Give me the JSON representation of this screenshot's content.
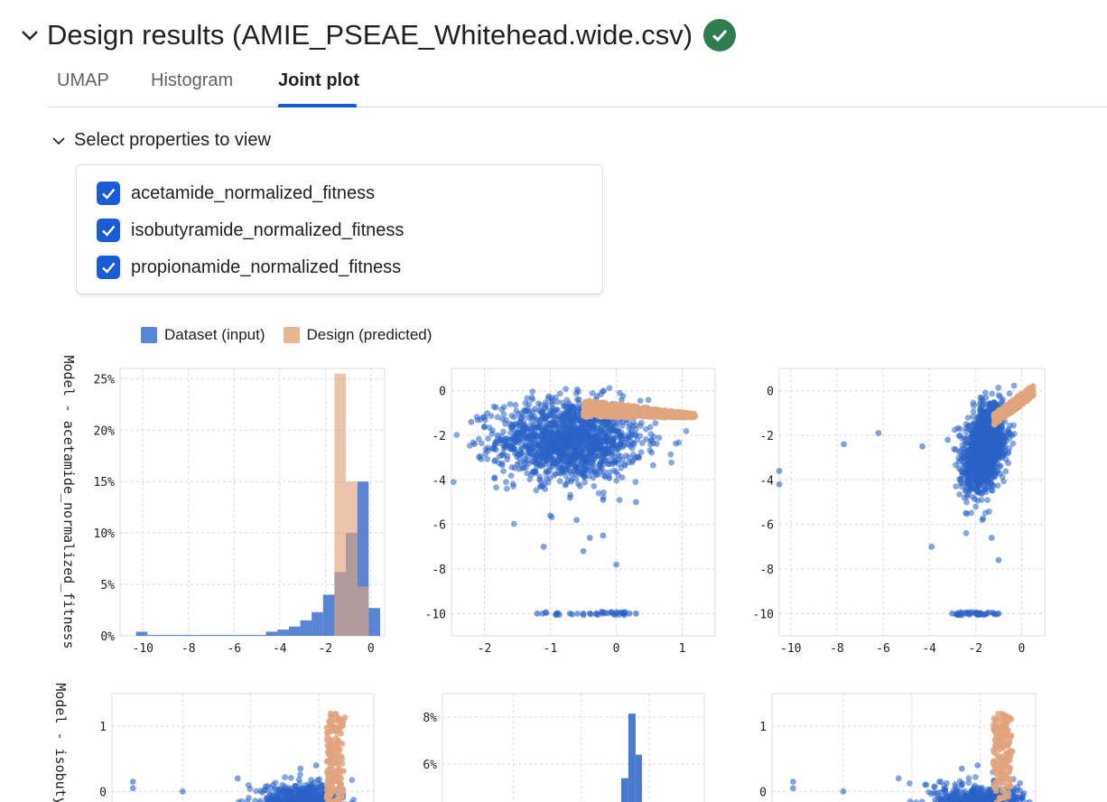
{
  "header": {
    "title": "Design results (AMIE_PSEAE_Whitehead.wide.csv)",
    "status_icon": "check-circle-icon",
    "status_color": "#2f7d4f"
  },
  "tabs": [
    {
      "label": "UMAP",
      "active": false
    },
    {
      "label": "Histogram",
      "active": false
    },
    {
      "label": "Joint plot",
      "active": true
    }
  ],
  "properties": {
    "toggle_label": "Select properties to view",
    "items": [
      {
        "label": "acetamide_normalized_fitness",
        "checked": true
      },
      {
        "label": "isobutyramide_normalized_fitness",
        "checked": true
      },
      {
        "label": "propionamide_normalized_fitness",
        "checked": true
      }
    ]
  },
  "legend": [
    {
      "label": "Dataset (input)",
      "color": "#5b86d6"
    },
    {
      "label": "Design (predicted)",
      "color": "#e8b591"
    }
  ],
  "colors": {
    "accent": "#1a5cd6",
    "dataset": "#2a63c6",
    "design": "#e0a47e"
  },
  "chart_data": [
    {
      "type": "bar",
      "subtype": "histogram",
      "ylabel": "Model - acetamide_normalized_fitness",
      "xticks": [
        "-10",
        "-8",
        "-6",
        "-4",
        "-2",
        "0"
      ],
      "yticks": [
        "0%",
        "5%",
        "10%",
        "15%",
        "20%",
        "25%"
      ],
      "xlim": [
        -11,
        0.6
      ],
      "ylim": [
        0,
        26
      ],
      "series": [
        {
          "name": "Dataset (input)",
          "bins": [
            [
              -10.3,
              -9.8,
              0.4
            ],
            [
              -9.8,
              -4.6,
              0.08
            ],
            [
              -4.6,
              -4.1,
              0.4
            ],
            [
              -4.1,
              -3.6,
              0.6
            ],
            [
              -3.6,
              -3.1,
              0.9
            ],
            [
              -3.1,
              -2.6,
              1.5
            ],
            [
              -2.6,
              -2.1,
              2.3
            ],
            [
              -2.1,
              -1.6,
              4.0
            ],
            [
              -1.6,
              -1.1,
              6.2
            ],
            [
              -1.1,
              -0.6,
              10.0
            ],
            [
              -0.6,
              -0.1,
              15.0
            ],
            [
              -0.1,
              0.4,
              2.7
            ]
          ]
        },
        {
          "name": "Design (predicted)",
          "bins": [
            [
              -1.6,
              -1.1,
              25.5
            ],
            [
              -1.1,
              -0.6,
              15.0
            ],
            [
              -0.6,
              -0.1,
              4.8
            ]
          ]
        }
      ]
    },
    {
      "type": "scatter",
      "xticks": [
        "-2",
        "-1",
        "0",
        "1"
      ],
      "yticks": [
        "0",
        "-2",
        "-4",
        "-6",
        "-8",
        "-10"
      ],
      "xlim": [
        -2.5,
        1.5
      ],
      "ylim": [
        -11,
        1
      ],
      "dataset_cloud": {
        "center": [
          -0.7,
          -2.2
        ],
        "spread": [
          0.55,
          0.9
        ]
      },
      "dataset_outliers": [
        [
          -2.2,
          -1.4
        ],
        [
          -2.0,
          -1.6
        ],
        [
          -1.8,
          -2.0
        ],
        [
          -1.6,
          -2.6
        ],
        [
          -1.5,
          -3.3
        ],
        [
          -0.7,
          -4.8
        ],
        [
          -0.2,
          -4.9
        ],
        [
          0.3,
          -5.0
        ],
        [
          -1.0,
          -5.6
        ],
        [
          -0.6,
          -5.8
        ],
        [
          -1.1,
          -7.0
        ],
        [
          -0.4,
          -6.6
        ],
        [
          -0.5,
          -7.2
        ],
        [
          0.0,
          -7.8
        ],
        [
          -0.2,
          -6.5
        ]
      ],
      "dataset_band_y": -10,
      "dataset_band_x": [
        -1.2,
        -0.9,
        -0.7,
        -0.5,
        -0.2,
        0.1,
        0.3,
        -0.4,
        -0.3,
        0.2
      ],
      "design_band": {
        "x": [
          -0.5,
          1.2
        ],
        "y": [
          -1.2,
          -0.4
        ]
      }
    },
    {
      "type": "scatter",
      "xticks": [
        "-10",
        "-8",
        "-6",
        "-4",
        "-2",
        "0"
      ],
      "yticks": [
        "0",
        "-2",
        "-4",
        "-6",
        "-8",
        "-10"
      ],
      "xlim": [
        -10.5,
        1
      ],
      "ylim": [
        -11,
        1
      ],
      "dataset_cloud": {
        "center": [
          -1.6,
          -2.5
        ],
        "spread": [
          0.6,
          0.9
        ]
      },
      "dataset_outliers": [
        [
          -10.5,
          -3.6
        ],
        [
          -10.5,
          -4.2
        ],
        [
          -7.7,
          -2.4
        ],
        [
          -6.2,
          -1.9
        ],
        [
          -4.3,
          -2.5
        ],
        [
          -3.9,
          -7.0
        ],
        [
          -1.7,
          -5.8
        ],
        [
          -1.3,
          -6.6
        ],
        [
          -1.0,
          -7.6
        ],
        [
          -3.2,
          -2.2
        ]
      ],
      "dataset_band_y": -10,
      "dataset_band_x": [
        -3.0,
        -2.6,
        -2.0,
        -1.8,
        -1.5,
        -1.2,
        -2.4,
        -1.0
      ],
      "design_band": {
        "x": [
          -1.2,
          0.5
        ],
        "y": [
          -1.3,
          0
        ]
      }
    },
    {
      "type": "scatter",
      "ylabel": "Model - isobuty",
      "yticks": [
        "1",
        "0"
      ],
      "xlim": [
        -11,
        0.6
      ],
      "ylim": [
        -0.3,
        1.5
      ]
    },
    {
      "type": "bar",
      "subtype": "histogram",
      "yticks": [
        "8%",
        "6%"
      ],
      "xlim": [
        -2.5,
        1.5
      ],
      "ylim": [
        4,
        9
      ]
    },
    {
      "type": "scatter",
      "yticks": [
        "1",
        "0"
      ],
      "xlim": [
        -10.5,
        1
      ],
      "ylim": [
        -0.3,
        1.5
      ]
    }
  ]
}
